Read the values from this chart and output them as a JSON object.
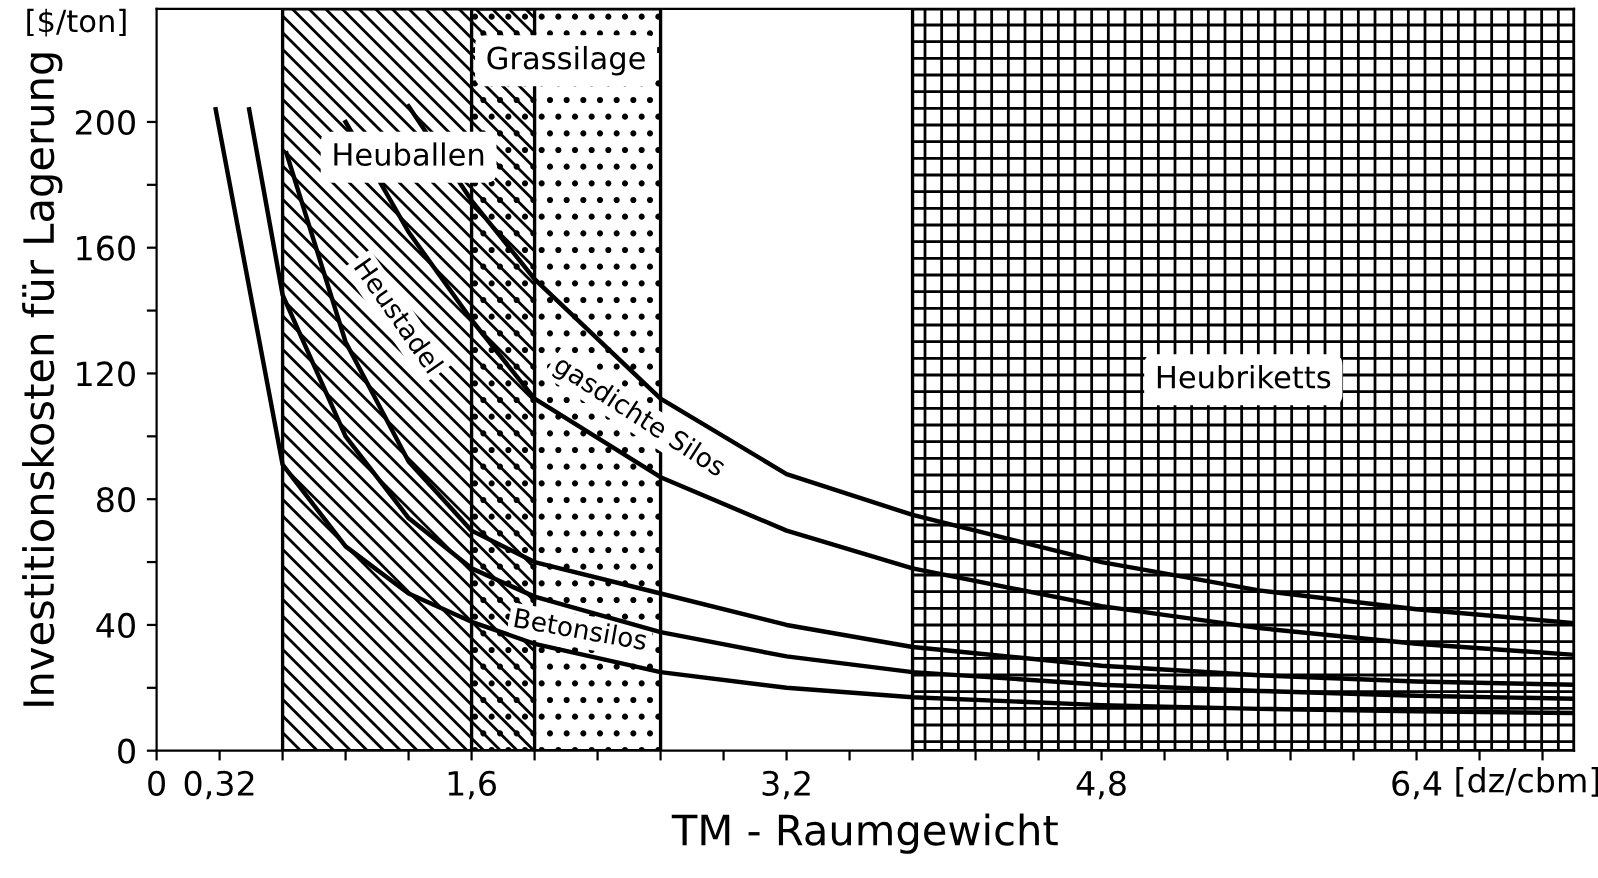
{
  "chart_data": {
    "type": "line",
    "xlabel": "TM - Raumgewicht",
    "ylabel": "Investitionskosten für Lagerung",
    "xlim": [
      0,
      7.2
    ],
    "ylim": [
      0,
      236
    ],
    "xticks": [
      0,
      {
        "value": 0.32,
        "label": "0,32"
      },
      {
        "value": 0.64,
        "label": null
      },
      {
        "value": 0.96,
        "label": null
      },
      {
        "value": 1.28,
        "label": null
      },
      {
        "value": 1.6,
        "label": "1,6"
      },
      {
        "value": 1.92,
        "label": null
      },
      {
        "value": 2.24,
        "label": null
      },
      {
        "value": 2.56,
        "label": null
      },
      {
        "value": 2.88,
        "label": null
      },
      {
        "value": 3.2,
        "label": "3,2"
      },
      {
        "value": 3.52,
        "label": null
      },
      {
        "value": 3.84,
        "label": null
      },
      {
        "value": 4.16,
        "label": null
      },
      {
        "value": 4.48,
        "label": null
      },
      {
        "value": 4.8,
        "label": "4,8"
      },
      {
        "value": 5.12,
        "label": null
      },
      {
        "value": 5.44,
        "label": null
      },
      {
        "value": 5.76,
        "label": null
      },
      {
        "value": 6.08,
        "label": null
      },
      {
        "value": 6.4,
        "label": "6,4"
      },
      {
        "value": 6.72,
        "label": null
      },
      {
        "value": 7.04,
        "label": null
      }
    ],
    "yticks": [
      0,
      {
        "value": 20,
        "label": null
      },
      40,
      {
        "value": 60,
        "label": null
      },
      80,
      {
        "value": 100,
        "label": null
      },
      120,
      {
        "value": 140,
        "label": null
      },
      160,
      {
        "value": 180,
        "label": null
      },
      200
    ],
    "grid": false,
    "legend": false,
    "marker": "none",
    "line_style": "solid",
    "series": [
      {
        "color": "#000000",
        "x": [
          1.28,
          1.6,
          1.92,
          2.56,
          3.2,
          3.84,
          4.8,
          5.6,
          6.4,
          7.2
        ],
        "values": [
          205,
          175,
          150,
          112,
          88,
          75,
          60,
          51,
          45,
          40.6
        ]
      },
      {
        "color": "#000000",
        "x": [
          0.96,
          1.28,
          1.6,
          1.92,
          2.56,
          3.2,
          3.84,
          4.8,
          5.6,
          6.4,
          7.2
        ],
        "values": [
          200,
          165,
          137,
          112,
          87,
          70,
          58,
          46,
          39,
          34,
          30.5
        ]
      },
      {
        "color": "#000000",
        "x": [
          0.66,
          0.96,
          1.28,
          1.6,
          1.92,
          2.56,
          3.2,
          3.84,
          4.8,
          5.6,
          6.4,
          7.2
        ],
        "values": [
          190,
          130,
          92,
          70,
          60,
          50,
          40,
          33,
          27,
          24,
          22,
          21
        ]
      },
      {
        "color": "#000000",
        "x": [
          0.47,
          0.64,
          0.96,
          1.28,
          1.6,
          1.92,
          2.56,
          3.2,
          3.84,
          4.8,
          5.6,
          6.4,
          7.2
        ],
        "values": [
          204,
          145,
          100,
          74,
          58,
          49,
          37.7,
          30,
          25,
          21,
          19,
          17.5,
          16.5
        ]
      },
      {
        "color": "#000000",
        "x": [
          0.3,
          0.64,
          0.96,
          1.28,
          1.6,
          1.92,
          2.56,
          3.2,
          3.84,
          4.8,
          5.6,
          6.4,
          7.2
        ],
        "values": [
          204,
          91,
          65,
          50,
          41,
          34,
          25,
          20,
          17,
          14.5,
          13.3,
          12.5,
          12
        ]
      }
    ],
    "bands": [
      {
        "axis": "x",
        "from": 0.64,
        "to": 1.92,
        "label": "Heuballen",
        "color": "#000000"
      },
      {
        "axis": "x",
        "from": 1.6,
        "to": 2.56,
        "label": "Grassilage",
        "color": "#000000"
      },
      {
        "axis": "x",
        "from": 3.84,
        "to": 7.2,
        "label": "Heubriketts",
        "color": "#000000"
      }
    ],
    "annotations": [
      "[$/ton]",
      "[dz/cbm]",
      "gasdichte Silos",
      "Heustadel",
      "Betonsilos"
    ]
  }
}
